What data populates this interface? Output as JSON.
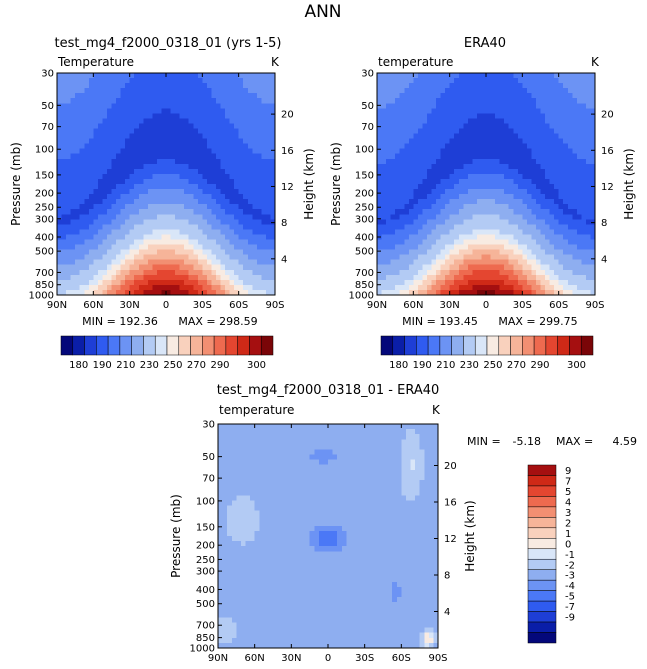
{
  "figure": {
    "title": "ANN"
  },
  "colors": {
    "temp_scale": [
      "#04087a",
      "#0a1ea8",
      "#1e3ed6",
      "#2f5bf0",
      "#4b78f6",
      "#6c93f4",
      "#8eaef0",
      "#b3cbf4",
      "#d9e6f8",
      "#f8ebe2",
      "#f9d1bd",
      "#f6b499",
      "#f28f72",
      "#ee6a4f",
      "#e44630",
      "#cf2917",
      "#a50f10",
      "#7a0508"
    ],
    "diff_scale": [
      "#04087a",
      "#0a1ea8",
      "#1e3ed6",
      "#2f5bf0",
      "#4b78f6",
      "#6c93f4",
      "#8eaef0",
      "#b3cbf4",
      "#d9e6f8",
      "#f8ebe2",
      "#f9d1bd",
      "#f6b499",
      "#f28f72",
      "#ee6a4f",
      "#e44630",
      "#cf2917",
      "#a50f10"
    ]
  },
  "chart_data": [
    {
      "type": "contour",
      "id": "model",
      "title": "test_mg4_f2000_0318_01 (yrs 1-5)",
      "variable": "Temperature",
      "units": "K",
      "xlabel": "",
      "ylabel": "Pressure (mb)",
      "y2label": "Height (km)",
      "x_ticks": [
        "90N",
        "60N",
        "30N",
        "0",
        "30S",
        "60S",
        "90S"
      ],
      "y_ticks": [
        30,
        50,
        70,
        100,
        150,
        200,
        250,
        300,
        400,
        500,
        700,
        850,
        1000
      ],
      "y2_ticks": [
        4,
        8,
        12,
        16,
        20
      ],
      "min_label": "MIN = 192.36",
      "max_label": "MAX = 298.59",
      "min": 192.36,
      "max": 298.59
    },
    {
      "type": "contour",
      "id": "obs",
      "title": "ERA40",
      "variable": "temperature",
      "units": "K",
      "xlabel": "",
      "ylabel": "Pressure (mb)",
      "y2label": "Height (km)",
      "x_ticks": [
        "90N",
        "60N",
        "30N",
        "0",
        "30S",
        "60S",
        "90S"
      ],
      "y_ticks": [
        30,
        50,
        70,
        100,
        150,
        200,
        250,
        300,
        400,
        500,
        700,
        850,
        1000
      ],
      "y2_ticks": [
        4,
        8,
        12,
        16,
        20
      ],
      "min_label": "MIN = 193.45",
      "max_label": "MAX = 299.75",
      "min": 193.45,
      "max": 299.75
    },
    {
      "type": "contour",
      "id": "diff",
      "title": "test_mg4_f2000_0318_01 - ERA40",
      "variable": "temperature",
      "units": "K",
      "ylabel": "Pressure (mb)",
      "y2label": "Height (km)",
      "x_ticks": [
        "90N",
        "60N",
        "30N",
        "0",
        "30S",
        "60S",
        "90S"
      ],
      "y_ticks": [
        30,
        50,
        70,
        100,
        150,
        200,
        250,
        300,
        400,
        500,
        700,
        850,
        1000
      ],
      "y2_ticks": [
        4,
        8,
        12,
        16,
        20
      ],
      "min_label": "MIN =",
      "min_value": "-5.18",
      "max_label": "MAX =",
      "max_value": "4.59",
      "min": -5.18,
      "max": 4.59
    }
  ],
  "colorbars": {
    "temp": {
      "labels": [
        "180",
        "190",
        "210",
        "230",
        "250",
        "270",
        "290",
        "300"
      ]
    },
    "diff": {
      "labels": [
        "9",
        "7",
        "5",
        "4",
        "3",
        "2",
        "1",
        "0",
        "-1",
        "-2",
        "-3",
        "-4",
        "-5",
        "-7",
        "-9"
      ]
    }
  }
}
